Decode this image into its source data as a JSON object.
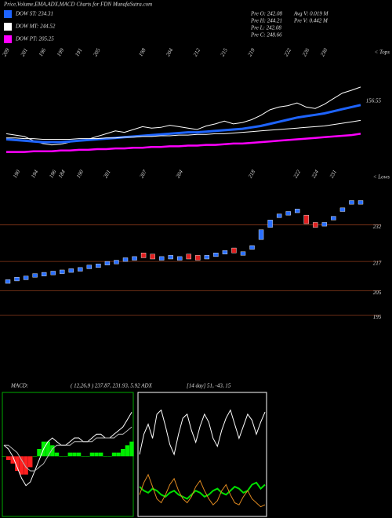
{
  "chart_data": [
    {
      "type": "line",
      "title": "Price,Volume,EMA,ADX,MACD Charts for FDN MunafaSutra.com",
      "info": [
        "Pre  O: 242.08",
        "Pre  H: 244.21",
        "Pre  L: 242.08",
        "Pre  C: 248.66",
        "Avg  V: 0.019  M",
        "Pre  V: 0.442  M"
      ],
      "annotations": [
        "< Tops",
        "156.55"
      ],
      "categories": [
        "209",
        null,
        "201",
        null,
        "196",
        null,
        "199",
        null,
        "191",
        null,
        "205",
        null,
        null,
        null,
        null,
        "198",
        null,
        null,
        "204",
        null,
        null,
        "212",
        null,
        null,
        "215",
        null,
        null,
        "219",
        null,
        null,
        null,
        "222",
        null,
        "226",
        null,
        "230",
        null,
        null,
        null,
        null
      ],
      "ylim": [
        40,
        180
      ],
      "series": [
        {
          "color": "#ffffff",
          "values": [
            90,
            88,
            86,
            80,
            76,
            74,
            75,
            78,
            80,
            82,
            86,
            90,
            94,
            92,
            96,
            100,
            98,
            99,
            102,
            100,
            98,
            96,
            101,
            104,
            108,
            104,
            106,
            110,
            116,
            124,
            128,
            130,
            134,
            128,
            126,
            132,
            140,
            148,
            152,
            156.55
          ]
        },
        {
          "name": "DOW ST: 234.31",
          "color": "#1e64ff",
          "values": [
            82,
            81,
            80,
            79,
            78,
            78,
            78,
            79,
            80,
            81,
            82,
            83,
            84,
            85,
            86,
            87,
            88,
            89,
            90,
            91,
            92,
            92,
            93,
            94,
            95,
            96,
            97,
            99,
            101,
            104,
            107,
            110,
            113,
            115,
            117,
            119,
            122,
            125,
            128,
            131
          ]
        },
        {
          "name": "DOW MT: 244.52",
          "color": "#ffffff",
          "values": [
            84,
            84,
            83,
            83,
            82,
            82,
            82,
            82,
            83,
            83,
            83,
            84,
            84,
            85,
            85,
            86,
            86,
            87,
            87,
            88,
            88,
            89,
            89,
            90,
            90,
            91,
            92,
            93,
            94,
            95,
            96,
            97,
            98,
            99,
            100,
            101,
            103,
            105,
            107,
            109
          ]
        },
        {
          "name": "DOW PT: 205.25",
          "color": "#ff00ff",
          "values": [
            64,
            64,
            64,
            65,
            65,
            65,
            66,
            66,
            67,
            67,
            68,
            68,
            69,
            69,
            70,
            70,
            71,
            71,
            72,
            72,
            73,
            73,
            74,
            74,
            75,
            76,
            76,
            77,
            78,
            79,
            80,
            81,
            82,
            83,
            84,
            85,
            86,
            87,
            88,
            90
          ]
        }
      ]
    },
    {
      "type": "candlestick",
      "annotations": [
        "< Lows"
      ],
      "categories": [
        null,
        "190",
        null,
        "194",
        null,
        "196",
        "184",
        null,
        "190",
        null,
        null,
        "201",
        null,
        null,
        null,
        "207",
        null,
        null,
        null,
        "204",
        null,
        null,
        null,
        null,
        null,
        null,
        null,
        "218",
        null,
        null,
        null,
        null,
        "222",
        null,
        "224",
        null,
        "231",
        null,
        null,
        null
      ],
      "open": [
        208,
        209,
        209.5,
        210.5,
        211,
        211.5,
        212,
        212.5,
        213,
        214,
        214.5,
        215.5,
        216,
        217,
        217.5,
        220.5,
        220,
        217.5,
        218,
        217.5,
        220,
        219.5,
        218,
        219,
        220,
        222.5,
        219.5,
        222,
        226,
        231,
        235,
        236,
        237,
        236,
        233,
        231.5,
        234,
        237.5,
        240.5,
        240.5
      ],
      "close": [
        209.5,
        210.5,
        211,
        212,
        212.5,
        213,
        213.5,
        214,
        214.5,
        215.5,
        216,
        217,
        217.5,
        218.5,
        219,
        218.5,
        218,
        219,
        219.5,
        219,
        218,
        217.5,
        219.5,
        220.5,
        221.5,
        220.5,
        221,
        223.5,
        230,
        234,
        236.5,
        237.5,
        238.5,
        232.5,
        231,
        233,
        235.5,
        239,
        242,
        242
      ],
      "up_color": "#2a6fff",
      "down_color": "#e02020",
      "ylim": [
        189,
        247
      ],
      "yticks": [
        195,
        205,
        217,
        232
      ],
      "grid": true
    },
    {
      "type": "macd",
      "title": "MACD:",
      "subtitle": "( 12,26,9 ) 237.87, 231.93, 5.92  ADX",
      "ylim": [
        -8,
        8.5
      ],
      "macd": {
        "color": "#ffffff",
        "values": [
          1.5,
          1,
          0,
          -1.5,
          -3,
          -4,
          -3.5,
          -2,
          -0.5,
          1,
          2,
          2.5,
          2,
          1.5,
          1.5,
          2,
          2.5,
          2.5,
          2,
          2,
          2.5,
          3,
          3,
          2.5,
          2.5,
          3,
          3.5,
          4,
          5,
          6
        ]
      },
      "signal": {
        "color": "#bbbbbb",
        "values": [
          1.5,
          1.5,
          1,
          0.5,
          -0.5,
          -1.5,
          -2,
          -2,
          -1.5,
          -1,
          0,
          1,
          1.5,
          1.5,
          1.5,
          1.5,
          2,
          2,
          2,
          2,
          2,
          2.5,
          2.5,
          2.5,
          2.5,
          2.5,
          3,
          3,
          3.5,
          4
        ]
      },
      "histogram": {
        "pos_color": "#00ee00",
        "neg_color": "#ff2020",
        "values": [
          0,
          -0.5,
          -1,
          -2,
          -2.5,
          -2.5,
          -1.5,
          0,
          1,
          2,
          2,
          1.5,
          0.5,
          0,
          0,
          0.5,
          0.5,
          0.5,
          0,
          0,
          0.5,
          0.5,
          0.5,
          0,
          0,
          0.5,
          0.5,
          1,
          1.5,
          2
        ]
      }
    },
    {
      "type": "adx",
      "title": "[14 day] 51, -43, 15",
      "ylim": [
        0,
        60
      ],
      "series": [
        {
          "color": "#ffffff",
          "values": [
            30,
            40,
            45,
            38,
            50,
            52,
            44,
            35,
            30,
            40,
            48,
            50,
            42,
            36,
            44,
            50,
            46,
            38,
            34,
            42,
            48,
            52,
            45,
            38,
            44,
            50,
            47,
            40,
            46,
            51
          ]
        },
        {
          "color": "#00e000",
          "values": [
            14,
            12,
            11,
            13,
            12,
            10,
            9,
            11,
            12,
            10,
            9,
            8,
            10,
            12,
            11,
            9,
            10,
            12,
            13,
            11,
            10,
            12,
            14,
            13,
            11,
            12,
            15,
            16,
            13,
            15
          ]
        },
        {
          "color": "#e08a20",
          "values": [
            10,
            16,
            20,
            14,
            8,
            6,
            10,
            15,
            18,
            12,
            8,
            6,
            9,
            14,
            17,
            12,
            8,
            5,
            7,
            12,
            15,
            10,
            6,
            5,
            9,
            12,
            8,
            6,
            4,
            5
          ]
        }
      ]
    }
  ]
}
